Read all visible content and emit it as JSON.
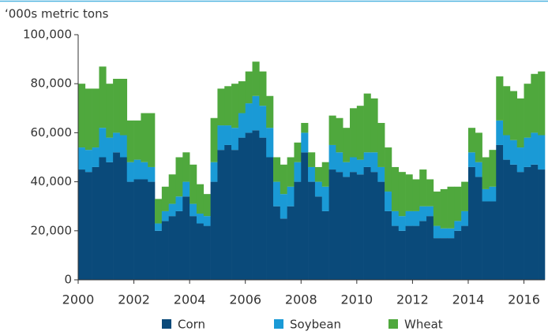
{
  "chart_data": {
    "type": "bar",
    "stacked": true,
    "y_label": "‘000s metric tons",
    "x": [
      2000,
      2000.25,
      2000.5,
      2000.75,
      2001,
      2001.25,
      2001.5,
      2001.75,
      2002,
      2002.25,
      2002.5,
      2002.75,
      2003,
      2003.25,
      2003.5,
      2003.75,
      2004,
      2004.25,
      2004.5,
      2004.75,
      2005,
      2005.25,
      2005.5,
      2005.75,
      2006,
      2006.25,
      2006.5,
      2006.75,
      2007,
      2007.25,
      2007.5,
      2007.75,
      2008,
      2008.25,
      2008.5,
      2008.75,
      2009,
      2009.25,
      2009.5,
      2009.75,
      2010,
      2010.25,
      2010.5,
      2010.75,
      2011,
      2011.25,
      2011.5,
      2011.75,
      2012,
      2012.25,
      2012.5,
      2012.75,
      2013,
      2013.25,
      2013.5,
      2013.75,
      2014,
      2014.25,
      2014.5,
      2014.75,
      2015,
      2015.25,
      2015.5,
      2015.75,
      2016,
      2016.25,
      2016.5
    ],
    "series": [
      {
        "name": "Corn",
        "color": "#0a4a7a",
        "values": [
          45000,
          44000,
          46000,
          50000,
          48000,
          52000,
          50000,
          40000,
          41000,
          41000,
          40000,
          20000,
          24000,
          26000,
          28000,
          34000,
          26000,
          23000,
          22000,
          40000,
          53000,
          55000,
          53000,
          58000,
          60000,
          61000,
          58000,
          50000,
          30000,
          25000,
          30000,
          40000,
          52000,
          40000,
          34000,
          28000,
          45000,
          44000,
          42000,
          44000,
          43000,
          46000,
          44000,
          40000,
          28000,
          22000,
          20000,
          22000,
          22000,
          24000,
          26000,
          17000,
          17000,
          17000,
          20000,
          22000,
          46000,
          42000,
          32000,
          32000,
          55000,
          49000,
          47000,
          44000,
          46000,
          47000,
          45000
        ]
      },
      {
        "name": "Soybean",
        "color": "#1a9ad6",
        "values": [
          9000,
          9000,
          8000,
          12000,
          10000,
          8000,
          9000,
          8000,
          8000,
          7000,
          6000,
          3000,
          4000,
          5000,
          6000,
          6000,
          5000,
          4000,
          4000,
          8000,
          10000,
          8000,
          9000,
          10000,
          12000,
          14000,
          13000,
          12000,
          10000,
          10000,
          8000,
          8000,
          8000,
          6000,
          6000,
          10000,
          10000,
          8000,
          6000,
          6000,
          6000,
          6000,
          8000,
          6000,
          8000,
          6000,
          6000,
          6000,
          6000,
          6000,
          4000,
          5000,
          4000,
          4000,
          4000,
          6000,
          6000,
          6000,
          5000,
          6000,
          10000,
          10000,
          10000,
          10000,
          12000,
          13000,
          14000
        ]
      },
      {
        "name": "Wheat",
        "color": "#4fa83d",
        "values": [
          26000,
          25000,
          24000,
          25000,
          22000,
          22000,
          23000,
          17000,
          16000,
          20000,
          22000,
          10000,
          10000,
          12000,
          16000,
          12000,
          16000,
          12000,
          9000,
          18000,
          15000,
          16000,
          18000,
          13000,
          13000,
          14000,
          14000,
          13000,
          10000,
          12000,
          12000,
          8000,
          4000,
          6000,
          6000,
          10000,
          12000,
          14000,
          14000,
          20000,
          22000,
          24000,
          22000,
          18000,
          18000,
          18000,
          18000,
          15000,
          13000,
          15000,
          11000,
          14000,
          16000,
          17000,
          14000,
          12000,
          10000,
          12000,
          13000,
          15000,
          18000,
          20000,
          20000,
          20000,
          22000,
          24000,
          26000
        ]
      }
    ],
    "xlim": [
      2000,
      2016.75
    ],
    "xticks": [
      2000,
      2002,
      2004,
      2006,
      2008,
      2010,
      2012,
      2014,
      2016
    ],
    "ylim": [
      0,
      100000
    ],
    "yticks": [
      0,
      {
        "value": 20000,
        "label": "20,000"
      },
      {
        "value": 40000,
        "label": "40,000"
      },
      {
        "value": 60000,
        "label": "60,000"
      },
      {
        "value": 80000,
        "label": "80,000"
      },
      {
        "value": 100000,
        "label": "100,000"
      }
    ],
    "legend": "bottom"
  }
}
